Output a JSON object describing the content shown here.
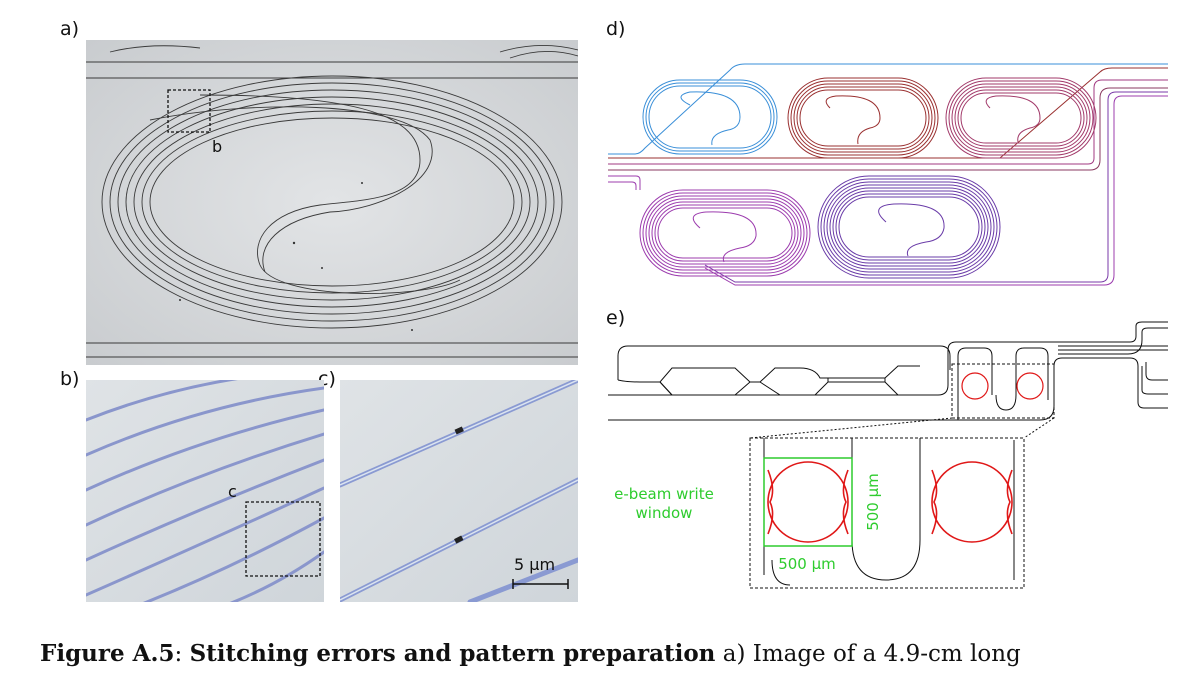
{
  "panels": {
    "a": "a)",
    "b": "b)",
    "c": "c)",
    "d": "d)",
    "e": "e)"
  },
  "annotations": {
    "box_b": "b",
    "box_c": "c",
    "scalebar": "5 µm",
    "ebeam_label_line1": "e-beam write",
    "ebeam_label_line2": "window",
    "dim_horizontal": "500 µm",
    "dim_vertical": "500 µm"
  },
  "caption": {
    "figure_label": "Figure A.5",
    "separator": ":",
    "title": "Stitching errors and pattern preparation",
    "text": " a) Image of a 4.9-cm long"
  },
  "colors": {
    "ring_blue": "#3a8fd8",
    "ring_red": "#9a3030",
    "ring_magenta": "#a23a82",
    "ring_purple": "#9c3cae",
    "ring_violet": "#6a3ca8",
    "highlight_green": "#2ecc2e",
    "highlight_red": "#e01818"
  }
}
